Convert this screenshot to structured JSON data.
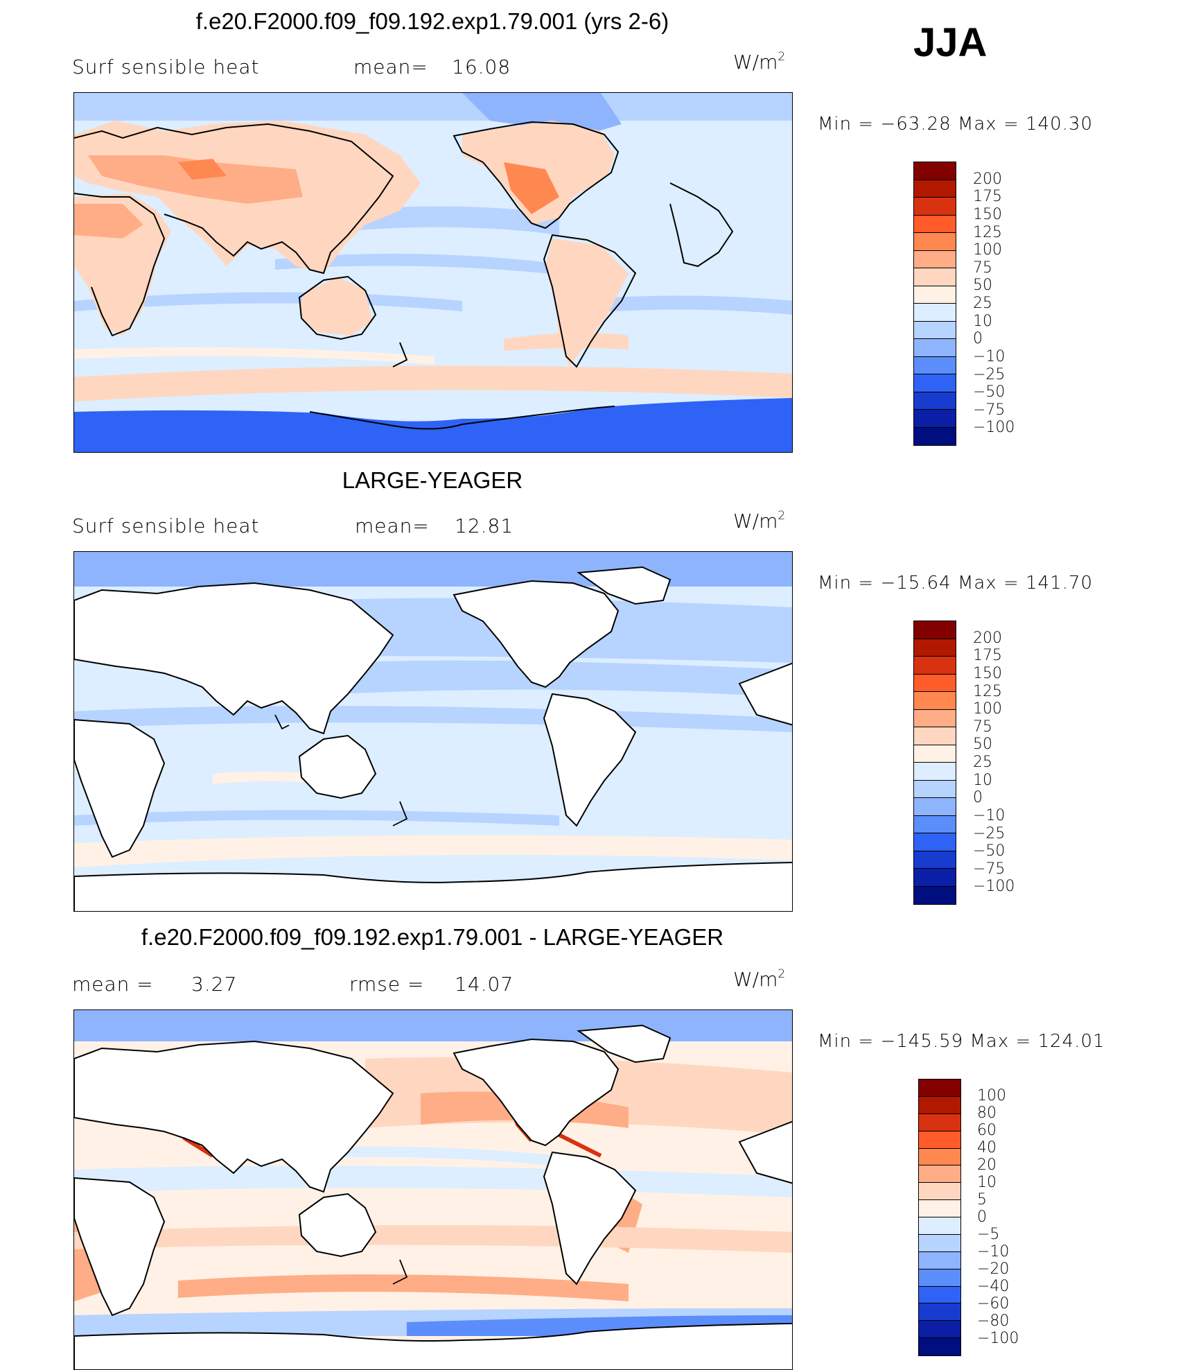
{
  "season": "JJA",
  "palettes": {
    "abs": [
      "#820000",
      "#b21800",
      "#d83210",
      "#ff5c2a",
      "#ff8850",
      "#ffad86",
      "#ffd7c0",
      "#fff1e6",
      "#dceeff",
      "#b7d3ff",
      "#8fb4fe",
      "#5b8efb",
      "#2f63f5",
      "#173ccf",
      "#0a1fa6",
      "#000e80"
    ],
    "diff": [
      "#820000",
      "#b21800",
      "#d83210",
      "#ff5c2a",
      "#ff8850",
      "#ffad86",
      "#ffd7c0",
      "#fff1e6",
      "#dceeff",
      "#b7d3ff",
      "#8fb4fe",
      "#5b8efb",
      "#2f63f5",
      "#173ccf",
      "#0a1fa6",
      "#000e80"
    ]
  },
  "panels": [
    {
      "title": "f.e20.F2000.f09_f09.192.exp1.79.001 (yrs 2-6)",
      "left_label": "Surf  sensible heat",
      "stat1_label": "mean=",
      "stat1_value": "16.08",
      "stat2_label": "",
      "stat2_value": "",
      "units": "W/m",
      "units_sup": "2",
      "min_label": "Min  =",
      "min": "−63.28",
      "max_label": "Max  =",
      "max": "140.30",
      "contour_levels": [
        "200",
        "175",
        "150",
        "125",
        "100",
        "75",
        "50",
        "25",
        "10",
        "0",
        "−10",
        "−25",
        "−50",
        "−75",
        "−100"
      ],
      "land_masked": false
    },
    {
      "title": "LARGE-YEAGER",
      "left_label": "Surf  sensible heat",
      "stat1_label": "mean=",
      "stat1_value": "12.81",
      "stat2_label": "",
      "stat2_value": "",
      "units": "W/m",
      "units_sup": "2",
      "min_label": "Min  =",
      "min": "−15.64",
      "max_label": "Max  =",
      "max": "141.70",
      "contour_levels": [
        "200",
        "175",
        "150",
        "125",
        "100",
        "75",
        "50",
        "25",
        "10",
        "0",
        "−10",
        "−25",
        "−50",
        "−75",
        "−100"
      ],
      "land_masked": true
    },
    {
      "title": "f.e20.F2000.f09_f09.192.exp1.79.001 - LARGE-YEAGER",
      "left_label": "mean  =",
      "stat1_label": "",
      "stat1_value": "3.27",
      "stat2_label": "rmse  =",
      "stat2_value": "14.07",
      "units": "W/m",
      "units_sup": "2",
      "min_label": "Min  =",
      "min": "−145.59",
      "max_label": "Max  =",
      "max": "124.01",
      "contour_levels": [
        "100",
        "80",
        "60",
        "40",
        "20",
        "10",
        "5",
        "0",
        "−5",
        "−10",
        "−20",
        "−40",
        "−60",
        "−80",
        "−100"
      ],
      "land_masked": true
    }
  ],
  "chart_data": [
    {
      "type": "heatmap",
      "title": "f.e20.F2000.f09_f09.192.exp1.79.001 (yrs 2-6)",
      "variable": "Surf  sensible heat",
      "units": "W/m2",
      "mean": 16.08,
      "min": -63.28,
      "max": 140.3,
      "levels": [
        200,
        175,
        150,
        125,
        100,
        75,
        50,
        25,
        10,
        0,
        -10,
        -25,
        -50,
        -75,
        -100
      ],
      "projection": "cylindrical equidistant, centered 180"
    },
    {
      "type": "heatmap",
      "title": "LARGE-YEAGER",
      "variable": "Surf  sensible heat",
      "units": "W/m2",
      "mean": 12.81,
      "min": -15.64,
      "max": 141.7,
      "levels": [
        200,
        175,
        150,
        125,
        100,
        75,
        50,
        25,
        10,
        0,
        -10,
        -25,
        -50,
        -75,
        -100
      ]
    },
    {
      "type": "heatmap",
      "title": "f.e20.F2000.f09_f09.192.exp1.79.001 - LARGE-YEAGER",
      "units": "W/m2",
      "mean": 3.27,
      "rmse": 14.07,
      "min": -145.59,
      "max": 124.01,
      "levels": [
        100,
        80,
        60,
        40,
        20,
        10,
        5,
        0,
        -5,
        -10,
        -20,
        -40,
        -60,
        -80,
        -100
      ]
    }
  ]
}
